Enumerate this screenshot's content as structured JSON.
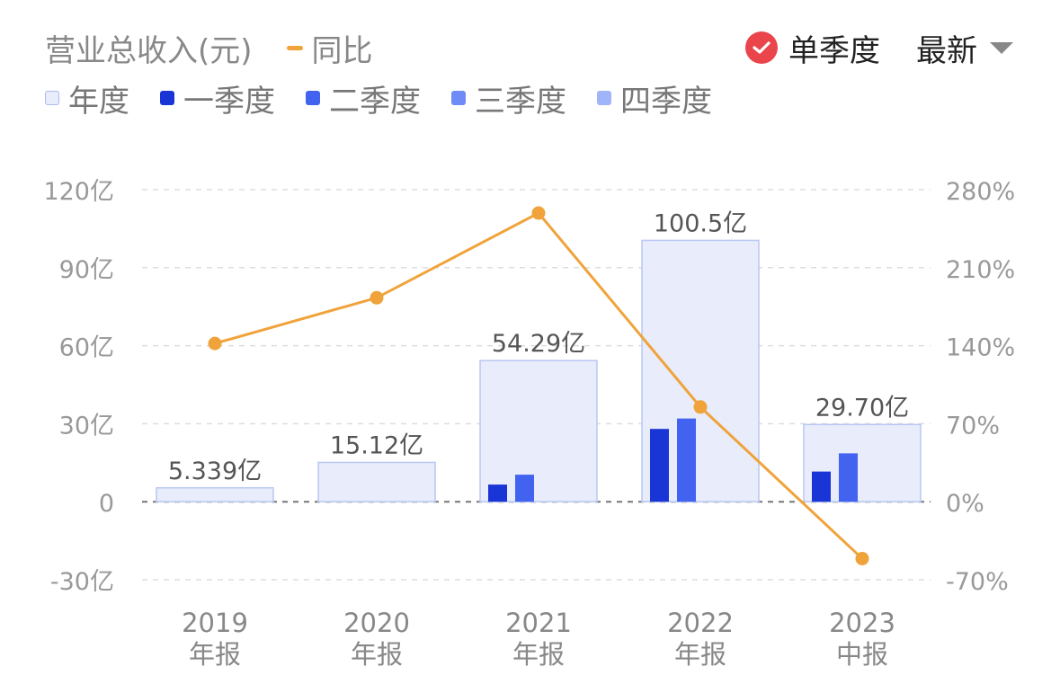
{
  "header": {
    "metric_label": "营业总收入(元)",
    "line_label": "同比",
    "mode_label": "单季度",
    "sort_label": "最新"
  },
  "legend": [
    {
      "label": "年度",
      "color": "#e8ecfb",
      "border": "#aabbee"
    },
    {
      "label": "一季度",
      "color": "#1a35d6",
      "border": "#1a35d6"
    },
    {
      "label": "二季度",
      "color": "#4262f0",
      "border": "#4262f0"
    },
    {
      "label": "三季度",
      "color": "#6f8cf6",
      "border": "#6f8cf6"
    },
    {
      "label": "四季度",
      "color": "#9fb4f9",
      "border": "#9fb4f9"
    }
  ],
  "colors": {
    "annual_fill": "#e8ecfb",
    "annual_stroke": "#b9c8f2",
    "q1": "#1a35d6",
    "q2": "#4262f0",
    "line": "#f0a33a",
    "grid": "#dddddd",
    "zero_line": "#777777",
    "axis_text": "#999999",
    "label_text": "#555555"
  },
  "chart_data": {
    "type": "bar",
    "categories": [
      {
        "year": "2019",
        "period": "年报"
      },
      {
        "year": "2020",
        "period": "年报"
      },
      {
        "year": "2021",
        "period": "年报"
      },
      {
        "year": "2022",
        "period": "年报"
      },
      {
        "year": "2023",
        "period": "中报"
      }
    ],
    "annual": {
      "values": [
        5.339,
        15.12,
        54.29,
        100.5,
        29.7
      ],
      "labels": [
        "5.339亿",
        "15.12亿",
        "54.29亿",
        "100.5亿",
        "29.70亿"
      ]
    },
    "quarterly": {
      "q1": [
        null,
        null,
        6.6,
        28.0,
        11.6
      ],
      "q2": [
        null,
        null,
        10.4,
        32.0,
        18.6
      ]
    },
    "yoy_percent": [
      142,
      183,
      259,
      85,
      -51
    ],
    "y_left": {
      "min": -30,
      "max": 120,
      "ticks": [
        "120亿",
        "90亿",
        "60亿",
        "30亿",
        "0",
        "-30亿"
      ],
      "tick_values": [
        120,
        90,
        60,
        30,
        0,
        -30
      ]
    },
    "y_right": {
      "min": -70,
      "max": 280,
      "ticks": [
        "280%",
        "210%",
        "140%",
        "70%",
        "0%",
        "-70%"
      ],
      "tick_values": [
        280,
        210,
        140,
        70,
        0,
        -70
      ]
    },
    "grid": true
  }
}
